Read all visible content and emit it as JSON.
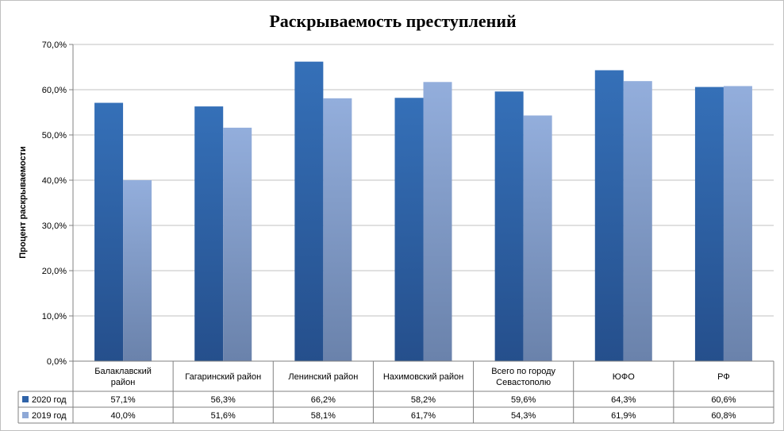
{
  "chart_data": {
    "type": "bar",
    "title": "Раскрываемость преступлений",
    "ylabel": "Процент раскрываемости",
    "xlabel": "",
    "ylim": [
      0,
      70
    ],
    "ytick_step": 10,
    "ytick_labels": [
      "0,0%",
      "10,0%",
      "20,0%",
      "30,0%",
      "40,0%",
      "50,0%",
      "60,0%",
      "70,0%"
    ],
    "grid": true,
    "legend": "data-table",
    "categories": [
      [
        "Балаклавский",
        "район"
      ],
      [
        "Гагаринский район"
      ],
      [
        "Ленинский район"
      ],
      [
        "Нахимовский район"
      ],
      [
        "Всего по городу",
        "Севастополю"
      ],
      [
        "ЮФО"
      ],
      [
        "РФ"
      ]
    ],
    "series": [
      {
        "name": "2020 год",
        "color": "#2f63a8",
        "values": [
          57.1,
          56.3,
          66.2,
          58.2,
          59.6,
          64.3,
          60.6
        ],
        "labels": [
          "57,1%",
          "56,3%",
          "66,2%",
          "58,2%",
          "59,6%",
          "64,3%",
          "60,6%"
        ]
      },
      {
        "name": "2019 год",
        "color": "#8ea8d6",
        "values": [
          40.0,
          51.6,
          58.1,
          61.7,
          54.3,
          61.9,
          60.8
        ],
        "labels": [
          "40,0%",
          "51,6%",
          "58,1%",
          "61,7%",
          "54,3%",
          "61,9%",
          "60,8%"
        ]
      }
    ]
  }
}
